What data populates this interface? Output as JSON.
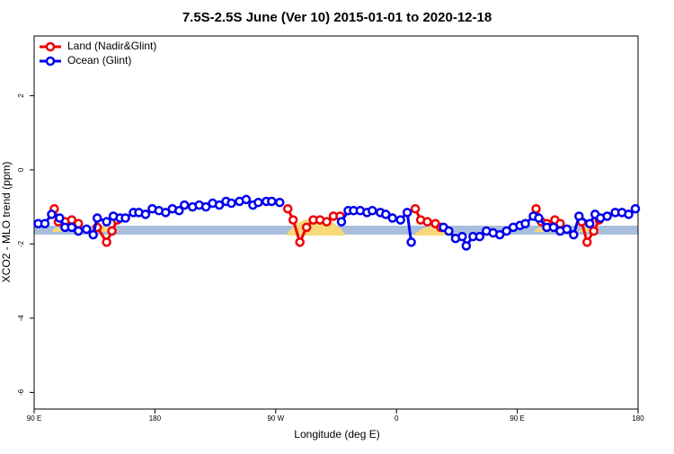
{
  "chart_data": {
    "type": "line",
    "title": "7.5S-2.5S June (Ver 10)   2015-01-01 to 2020-12-18",
    "x_label": "Longitude (deg E)",
    "y_label": "XCO2 - MLO trend (ppm)",
    "xlim": [
      90,
      540
    ],
    "ylim": [
      -6.45,
      3.61
    ],
    "xticks": [
      {
        "value": 90,
        "label": "90 E"
      },
      180,
      {
        "value": 270,
        "label": "90 W"
      },
      {
        "value": 360,
        "label": "0"
      },
      {
        "value": 450,
        "label": "90 E"
      },
      {
        "value": 540,
        "label": "180"
      }
    ],
    "yticks": [
      -6,
      -4,
      -2,
      0,
      2
    ],
    "legend": "top-left",
    "series": [
      {
        "name": "Land (Nadir&Glint)",
        "color": "#ee0000",
        "x": [
          105,
          108,
          113,
          118,
          123,
          128,
          137,
          144,
          148,
          152,
          200,
          279,
          283,
          288,
          293,
          298,
          303,
          308,
          313,
          318,
          340,
          374,
          378,
          383,
          389,
          393,
          420,
          464,
          468,
          472,
          478,
          482,
          490,
          498,
          502,
          507,
          511
        ],
        "values": [
          -1.05,
          -1.4,
          -1.4,
          -1.35,
          -1.45,
          null,
          -1.55,
          -1.95,
          -1.65,
          -1.35,
          null,
          -1.05,
          -1.35,
          -1.95,
          -1.55,
          -1.35,
          -1.35,
          -1.4,
          -1.25,
          -1.25,
          null,
          -1.05,
          -1.35,
          -1.4,
          -1.45,
          -1.55,
          null,
          -1.05,
          -1.4,
          -1.45,
          -1.35,
          -1.45,
          null,
          -1.4,
          -1.95,
          -1.65,
          -1.35
        ]
      },
      {
        "name": "Ocean (Glint)",
        "color": "#0000ee",
        "x": [
          93,
          98,
          103,
          109,
          113,
          118,
          123,
          129,
          134,
          137,
          144,
          149,
          154,
          158,
          164,
          168,
          173,
          178,
          183,
          188,
          193,
          198,
          202,
          208,
          213,
          218,
          223,
          228,
          233,
          237,
          243,
          248,
          253,
          257,
          263,
          267,
          273,
          280,
          319,
          324,
          328,
          333,
          338,
          342,
          348,
          352,
          357,
          363,
          368,
          371,
          375,
          395,
          399,
          404,
          409,
          412,
          417,
          422,
          427,
          432,
          437,
          442,
          447,
          452,
          456,
          462,
          466,
          472,
          477,
          482,
          487,
          492,
          496,
          504,
          508,
          512,
          517,
          523,
          528,
          533,
          538
        ],
        "values": [
          -1.45,
          -1.45,
          -1.2,
          -1.3,
          -1.55,
          -1.55,
          -1.65,
          -1.6,
          -1.75,
          -1.3,
          -1.4,
          -1.25,
          -1.3,
          -1.3,
          -1.15,
          -1.15,
          -1.2,
          -1.05,
          -1.1,
          -1.15,
          -1.05,
          -1.1,
          -0.95,
          -1.0,
          -0.95,
          -1.0,
          -0.9,
          -0.95,
          -0.85,
          -0.9,
          -0.85,
          -0.8,
          -0.95,
          -0.88,
          -0.85,
          -0.85,
          -0.88,
          null,
          -1.4,
          -1.1,
          -1.1,
          -1.1,
          -1.15,
          -1.1,
          -1.15,
          -1.2,
          -1.3,
          -1.35,
          -1.15,
          -1.95,
          null,
          -1.55,
          -1.65,
          -1.85,
          -1.8,
          -2.05,
          -1.8,
          -1.8,
          -1.65,
          -1.7,
          -1.75,
          -1.65,
          -1.55,
          -1.5,
          -1.45,
          -1.25,
          -1.3,
          -1.55,
          -1.55,
          -1.65,
          -1.6,
          -1.75,
          -1.25,
          -1.45,
          -1.2,
          -1.3,
          -1.25,
          -1.15,
          -1.15,
          -1.2,
          -1.05
        ]
      }
    ]
  }
}
